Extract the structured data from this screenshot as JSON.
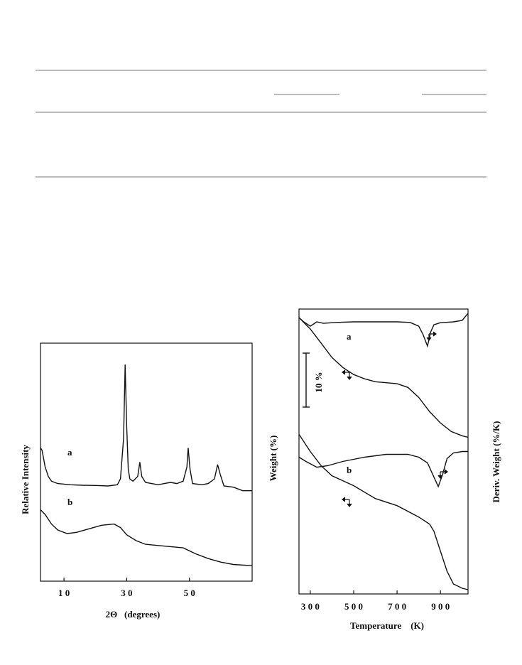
{
  "chart_data": [
    {
      "type": "line",
      "xlabel": "2Θ   (degrees)",
      "ylabel": "Relative Intensity",
      "xlim": [
        2.5,
        70
      ],
      "ylim": [
        0,
        100
      ],
      "xticks": [
        {
          "value": 10,
          "label": "1 0"
        },
        {
          "value": 30,
          "label": "3 0"
        },
        {
          "value": 50,
          "label": "5 0"
        }
      ],
      "series": [
        {
          "name": "a",
          "color": "#111111",
          "x": [
            2.5,
            3,
            4,
            5,
            6,
            8,
            12,
            16,
            20,
            24,
            27,
            28,
            29,
            29.5,
            30,
            30.5,
            31,
            32,
            33.5,
            34.2,
            34.8,
            36,
            40,
            42,
            44,
            46,
            48,
            49.2,
            49.6,
            50.2,
            51,
            54,
            56,
            58,
            59,
            59.8,
            61,
            64,
            67,
            70
          ],
          "values": [
            56,
            55,
            48,
            44,
            42,
            41,
            40.5,
            40.3,
            40.2,
            40,
            40.5,
            43,
            60,
            91,
            65,
            47,
            43,
            42,
            44,
            50,
            44,
            41.5,
            40.5,
            41,
            41.5,
            41,
            42,
            48,
            56,
            47,
            41,
            40.5,
            41,
            43,
            49,
            45,
            40,
            39.5,
            38,
            38
          ]
        },
        {
          "name": "b",
          "color": "#111111",
          "x": [
            2.5,
            4,
            6,
            8,
            11,
            14,
            18,
            22,
            26,
            28,
            30,
            33,
            36,
            40,
            44,
            48,
            52,
            56,
            60,
            64,
            70
          ],
          "values": [
            30,
            28,
            24,
            21.5,
            20,
            20.5,
            22,
            23.5,
            24,
            22.5,
            19.5,
            17,
            15.5,
            15,
            14.5,
            14,
            11.5,
            9.5,
            8,
            7,
            6.5
          ]
        }
      ]
    },
    {
      "type": "line",
      "xlabel": "Temperature    (K)",
      "ylabel": "Weight (%)",
      "y2label": "Deriv. Weight (%/K)",
      "annotations": [
        "10 %"
      ],
      "xlim": [
        248,
        1027
      ],
      "ylim": [
        0,
        100
      ],
      "y2lim": [
        0,
        100
      ],
      "xticks": [
        {
          "value": 300,
          "label": "3 0 0"
        },
        {
          "value": 500,
          "label": "5 0 0"
        },
        {
          "value": 700,
          "label": "7 0 0"
        },
        {
          "value": 900,
          "label": "9 0 0"
        }
      ],
      "series": [
        {
          "name": "a",
          "color": "#111111",
          "axis": "y2",
          "x": [
            248,
            270,
            300,
            330,
            360,
            420,
            500,
            600,
            700,
            760,
            800,
            820,
            840,
            855,
            870,
            900,
            960,
            1000,
            1027
          ],
          "values": [
            97,
            95.5,
            94,
            95.5,
            95,
            95.3,
            95.5,
            95.5,
            95.5,
            95.3,
            94,
            91,
            87,
            92,
            94.5,
            95.2,
            95.5,
            96,
            98.5
          ]
        },
        {
          "color": "#111111",
          "x": [
            248,
            300,
            350,
            400,
            450,
            500,
            550,
            600,
            700,
            750,
            800,
            850,
            900,
            950,
            1000,
            1027
          ],
          "values": [
            97,
            93,
            88,
            83,
            79.5,
            77,
            75.5,
            74.5,
            73.8,
            72.5,
            69,
            64,
            60,
            57,
            55.5,
            55
          ]
        },
        {
          "name": "b",
          "color": "#111111",
          "axis": "y2",
          "x": [
            248,
            280,
            330,
            380,
            450,
            550,
            650,
            750,
            800,
            840,
            870,
            890,
            910,
            930,
            960,
            1000,
            1027
          ],
          "values": [
            48,
            46.5,
            44.5,
            45,
            46.5,
            48,
            49,
            49,
            48,
            46,
            41,
            37.7,
            42,
            47.5,
            49.5,
            50,
            50
          ]
        },
        {
          "color": "#111111",
          "x": [
            248,
            300,
            350,
            400,
            500,
            600,
            700,
            800,
            850,
            870,
            900,
            930,
            960,
            1000,
            1027
          ],
          "values": [
            56,
            50,
            45,
            41.5,
            38,
            33.5,
            31,
            27,
            24.5,
            22,
            15,
            8,
            3.5,
            2,
            1.5
          ]
        }
      ]
    }
  ]
}
